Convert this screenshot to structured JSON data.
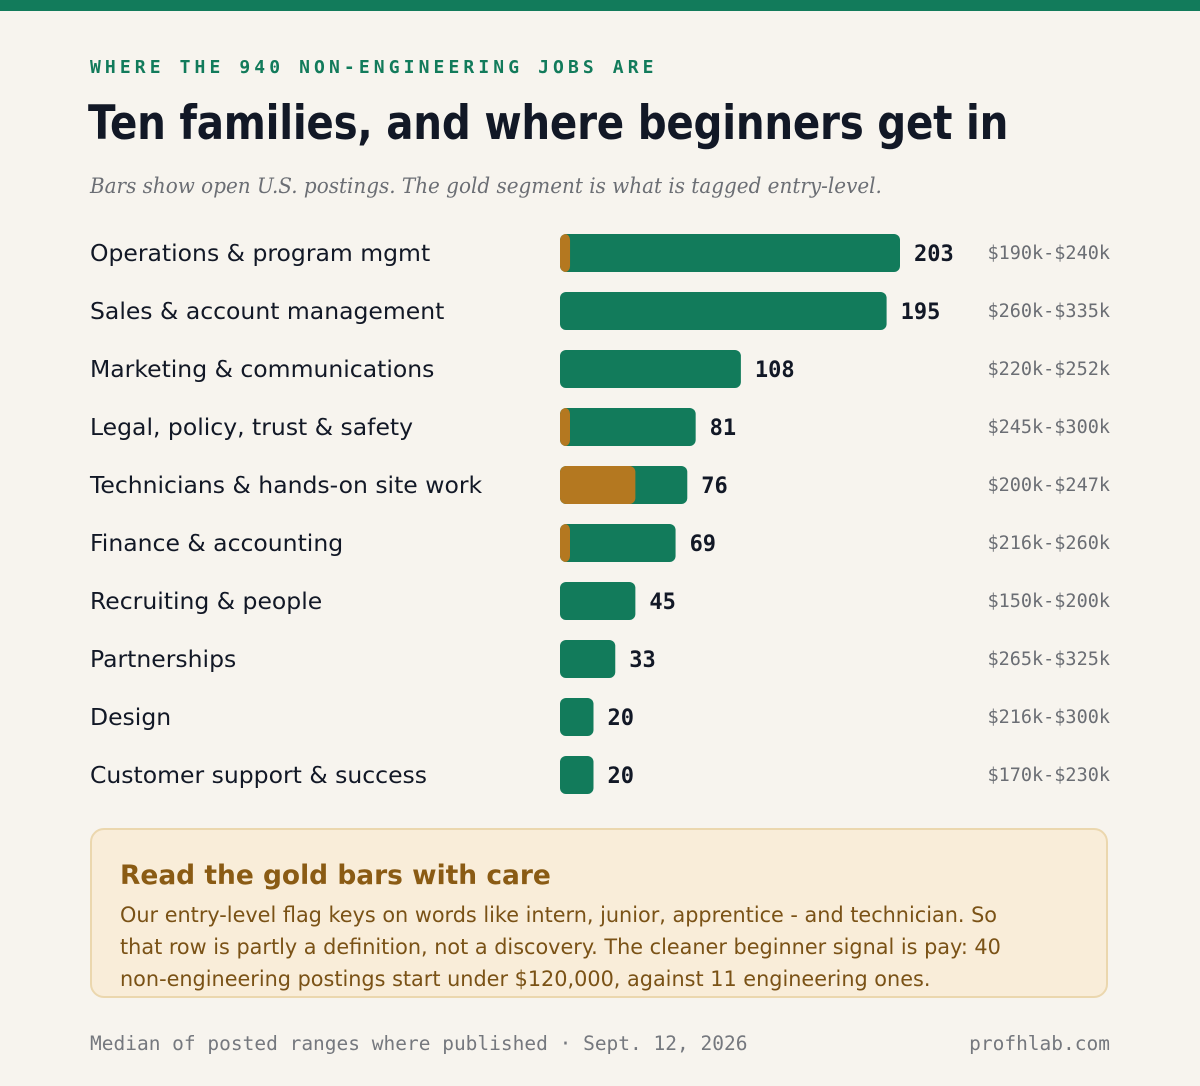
{
  "header": {
    "eyebrow": "WHERE THE 940 NON-ENGINEERING JOBS ARE",
    "title": "Ten families, and where beginners get in",
    "subtitle": "Bars show open U.S. postings. The gold segment is what is tagged entry-level."
  },
  "colors": {
    "total": "#127b5b",
    "entry_level": "#b47820",
    "background": "#f7f4ee"
  },
  "chart_data": {
    "type": "bar",
    "orientation": "horizontal",
    "stacked": true,
    "categories": [
      "Operations & program mgmt",
      "Sales & account management",
      "Marketing & communications",
      "Legal, policy, trust & safety",
      "Technicians & hands-on site work",
      "Finance & accounting",
      "Recruiting & people",
      "Partnerships",
      "Design",
      "Customer support & success"
    ],
    "totals": [
      203,
      195,
      108,
      81,
      76,
      69,
      45,
      33,
      20,
      20
    ],
    "entry_level": [
      6,
      0,
      0,
      5,
      45,
      5,
      0,
      0,
      0,
      0
    ],
    "salary_ranges": [
      "$190k-$240k",
      "$260k-$335k",
      "$220k-$252k",
      "$245k-$300k",
      "$200k-$247k",
      "$216k-$260k",
      "$150k-$200k",
      "$265k-$325k",
      "$216k-$300k",
      "$170k-$230k"
    ],
    "grid": false
  },
  "callout": {
    "title": "Read the gold bars with care",
    "body": "Our entry-level flag keys on words like intern, junior, apprentice - and technician. So that row is partly a definition, not a discovery. The cleaner beginner signal is pay: 40 non-engineering postings start under $120,000, against 11 engineering ones."
  },
  "footer": {
    "note": "Median of posted ranges where published · Sept. 12, 2026",
    "site": "profhlab.com"
  }
}
